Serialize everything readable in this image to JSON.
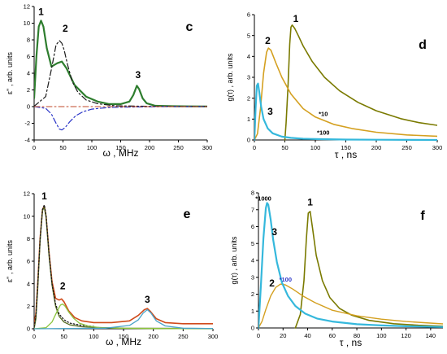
{
  "chart_data": [
    {
      "panel": "c",
      "type": "line",
      "xlabel": "ω , MHz",
      "ylabel": "ε'' , arb. units",
      "xlim": [
        0,
        300
      ],
      "ylim": [
        -4,
        12
      ],
      "xticks": [
        "0",
        "50",
        "100",
        "150",
        "200",
        "250",
        "300"
      ],
      "yticks": [
        "-4",
        "-2",
        "0",
        "2",
        "4",
        "6",
        "8",
        "10",
        "12"
      ],
      "annotations": [
        {
          "text": "1",
          "x": 12,
          "y": 11.0
        },
        {
          "text": "2",
          "x": 54,
          "y": 9.0
        },
        {
          "text": "3",
          "x": 180,
          "y": 3.4
        }
      ],
      "series": [
        {
          "color": "#2e7d2e",
          "style": "solid",
          "width": 2.2,
          "x": [
            0,
            4,
            8,
            12,
            16,
            22,
            30,
            40,
            48,
            56,
            70,
            90,
            110,
            130,
            150,
            165,
            172,
            178,
            182,
            188,
            195,
            210,
            240,
            270,
            300
          ],
          "y": [
            1.0,
            6.0,
            9.6,
            10.3,
            9.6,
            7.0,
            4.8,
            5.2,
            5.4,
            4.6,
            2.6,
            1.2,
            0.6,
            0.3,
            0.3,
            0.6,
            1.4,
            2.5,
            2.1,
            1.0,
            0.4,
            0.1,
            0.05,
            0.03,
            0.02
          ]
        },
        {
          "color": "#1a1a1a",
          "style": "dashdot",
          "width": 1.2,
          "x": [
            0,
            20,
            30,
            38,
            44,
            48,
            52,
            58,
            66,
            76,
            90,
            110,
            140,
            200,
            300
          ],
          "y": [
            0.05,
            1.2,
            4.5,
            7.4,
            7.9,
            7.6,
            6.8,
            5.0,
            3.0,
            1.7,
            0.8,
            0.35,
            0.1,
            0.03,
            0.01
          ]
        },
        {
          "color": "#2a35c8",
          "style": "dashdot",
          "width": 1.2,
          "x": [
            0,
            20,
            30,
            38,
            44,
            48,
            54,
            62,
            72,
            85,
            100,
            130,
            170,
            230,
            300
          ],
          "y": [
            0,
            -0.2,
            -0.9,
            -2.0,
            -2.7,
            -2.8,
            -2.5,
            -1.8,
            -1.1,
            -0.6,
            -0.3,
            -0.1,
            -0.05,
            0,
            0
          ]
        },
        {
          "color": "#c04a2a",
          "style": "dashdot",
          "width": 1.0,
          "x": [
            0,
            100,
            200,
            300
          ],
          "y": [
            0,
            0,
            0,
            0
          ]
        }
      ]
    },
    {
      "panel": "d",
      "type": "line",
      "xlabel": "τ , ns",
      "ylabel": "g(τ) , arb. units",
      "xlim": [
        0,
        300
      ],
      "ylim": [
        0,
        6
      ],
      "xticks": [
        "0",
        "50",
        "100",
        "150",
        "200",
        "250",
        "300"
      ],
      "yticks": [
        "0",
        "1",
        "2",
        "3",
        "4",
        "5",
        "6"
      ],
      "annotations": [
        {
          "text": "1",
          "x": 68,
          "y": 5.65
        },
        {
          "text": "2",
          "x": 22,
          "y": 4.6
        },
        {
          "text": "3",
          "x": 26,
          "y": 1.2
        },
        {
          "text": "*10",
          "x": 113,
          "y": 1.15
        },
        {
          "text": "*100",
          "x": 113,
          "y": 0.25
        }
      ],
      "series": [
        {
          "color": "#7a7a00",
          "style": "solid",
          "width": 1.6,
          "x": [
            50,
            52,
            55,
            58,
            60,
            62,
            66,
            72,
            80,
            95,
            115,
            140,
            170,
            200,
            240,
            270,
            300
          ],
          "y": [
            0,
            0.8,
            2.5,
            4.6,
            5.4,
            5.5,
            5.35,
            5.0,
            4.5,
            3.75,
            3.0,
            2.35,
            1.8,
            1.4,
            1.02,
            0.83,
            0.7
          ]
        },
        {
          "color": "#d4a020",
          "style": "solid",
          "width": 1.6,
          "x": [
            0,
            5,
            10,
            15,
            20,
            23,
            27,
            35,
            45,
            60,
            80,
            100,
            130,
            160,
            200,
            250,
            300
          ],
          "y": [
            0,
            0.3,
            1.5,
            3.2,
            4.2,
            4.4,
            4.3,
            3.7,
            3.0,
            2.2,
            1.5,
            1.1,
            0.75,
            0.55,
            0.37,
            0.24,
            0.18
          ]
        },
        {
          "color": "#35b8dc",
          "style": "solid",
          "width": 2.2,
          "x": [
            0,
            2,
            4,
            6,
            8,
            11,
            15,
            22,
            30,
            45,
            60,
            80,
            110,
            150,
            200,
            300
          ],
          "y": [
            0,
            1.5,
            2.6,
            2.7,
            2.3,
            1.6,
            1.0,
            0.55,
            0.32,
            0.16,
            0.1,
            0.06,
            0.04,
            0.02,
            0.01,
            0.0
          ]
        }
      ]
    },
    {
      "panel": "e",
      "type": "line",
      "xlabel": "ω , MHz",
      "ylabel": "ε'' , arb. units",
      "xlim": [
        0,
        300
      ],
      "ylim": [
        0,
        12
      ],
      "xticks": [
        "0",
        "50",
        "100",
        "150",
        "200",
        "250",
        "300"
      ],
      "yticks": [
        "0",
        "2",
        "4",
        "6",
        "8",
        "10",
        "12"
      ],
      "annotations": [
        {
          "text": "1",
          "x": 17,
          "y": 11.5
        },
        {
          "text": "2",
          "x": 48,
          "y": 3.5
        },
        {
          "text": "3",
          "x": 190,
          "y": 2.3
        }
      ],
      "series": [
        {
          "color": "#d04a1a",
          "style": "solid",
          "width": 1.6,
          "x": [
            0,
            3,
            6,
            10,
            14,
            17,
            20,
            25,
            30,
            36,
            42,
            46,
            50,
            58,
            68,
            80,
            100,
            130,
            160,
            175,
            185,
            190,
            195,
            205,
            220,
            250,
            300
          ],
          "y": [
            0.4,
            1.4,
            4.0,
            8.0,
            10.6,
            10.9,
            10.0,
            6.8,
            4.2,
            2.7,
            2.55,
            2.65,
            2.4,
            1.6,
            1.0,
            0.7,
            0.55,
            0.55,
            0.7,
            1.2,
            1.7,
            1.8,
            1.55,
            0.9,
            0.55,
            0.45,
            0.45
          ]
        },
        {
          "color": "#556b1f",
          "style": "solid",
          "width": 1.3,
          "x": [
            0,
            3,
            6,
            10,
            14,
            17,
            20,
            25,
            30,
            36,
            42,
            50,
            60,
            80,
            100,
            150,
            300
          ],
          "y": [
            0,
            0.9,
            3.5,
            7.8,
            10.5,
            10.8,
            9.9,
            6.5,
            3.9,
            2.0,
            1.1,
            0.6,
            0.35,
            0.18,
            0.12,
            0.05,
            0.02
          ]
        },
        {
          "color": "#1a1a1a",
          "style": "dotted",
          "width": 1.3,
          "x": [
            0,
            3,
            6,
            10,
            14,
            17,
            20,
            25,
            30,
            36,
            42,
            50,
            60,
            80,
            100
          ],
          "y": [
            0.2,
            1.2,
            3.8,
            7.9,
            10.6,
            11.0,
            10.1,
            6.7,
            4.0,
            2.2,
            1.3,
            0.8,
            0.5,
            0.3,
            0.2
          ]
        },
        {
          "color": "#8dc63f",
          "style": "solid",
          "width": 1.3,
          "x": [
            0,
            20,
            30,
            38,
            44,
            48,
            52,
            58,
            66,
            76,
            90,
            110,
            140,
            200,
            300
          ],
          "y": [
            0,
            0.1,
            0.6,
            1.5,
            2.1,
            2.2,
            2.0,
            1.5,
            0.95,
            0.5,
            0.25,
            0.1,
            0.05,
            0.02,
            0
          ]
        },
        {
          "color": "#4aa3c8",
          "style": "solid",
          "width": 1.3,
          "x": [
            0,
            120,
            160,
            175,
            183,
            190,
            196,
            205,
            220,
            250,
            300
          ],
          "y": [
            0,
            0.05,
            0.3,
            0.8,
            1.4,
            1.7,
            1.4,
            0.7,
            0.25,
            0.05,
            0.02
          ]
        }
      ]
    },
    {
      "panel": "f",
      "type": "line",
      "xlabel": "τ , ns",
      "ylabel": "g(τ) , arb. units",
      "xlim": [
        0,
        150
      ],
      "ylim": [
        0,
        8
      ],
      "xticks": [
        "0",
        "20",
        "40",
        "60",
        "80",
        "100",
        "120",
        "140"
      ],
      "yticks": [
        "0",
        "1",
        "2",
        "3",
        "4",
        "5",
        "6",
        "7",
        "8"
      ],
      "annotations": [
        {
          "text": "1",
          "x": 42,
          "y": 7.25
        },
        {
          "text": "2",
          "x": 11,
          "y": 2.45
        },
        {
          "text": "3",
          "x": 13,
          "y": 5.5
        },
        {
          "text": "*1000",
          "x": 4,
          "y": 7.55
        },
        {
          "text": "*100",
          "x": 22,
          "y": 2.75
        }
      ],
      "series": [
        {
          "color": "#7a7a00",
          "style": "solid",
          "width": 1.6,
          "x": [
            30,
            34,
            37,
            39,
            40.5,
            42,
            44,
            47,
            52,
            58,
            66,
            76,
            90,
            110,
            130,
            150
          ],
          "y": [
            0,
            0.8,
            2.8,
            5.3,
            6.8,
            6.9,
            5.9,
            4.3,
            2.8,
            1.8,
            1.15,
            0.75,
            0.45,
            0.25,
            0.16,
            0.1
          ]
        },
        {
          "color": "#d4a020",
          "style": "solid",
          "width": 1.4,
          "x": [
            0,
            3,
            6,
            10,
            14,
            18,
            22,
            28,
            36,
            46,
            60,
            80,
            100,
            120,
            150
          ],
          "y": [
            0,
            0.4,
            1.1,
            1.9,
            2.4,
            2.6,
            2.55,
            2.3,
            1.9,
            1.5,
            1.05,
            0.72,
            0.52,
            0.38,
            0.24
          ]
        },
        {
          "color": "#35b8dc",
          "style": "solid",
          "width": 2.2,
          "x": [
            0,
            2,
            4,
            6,
            7,
            8,
            10,
            12,
            15,
            19,
            24,
            30,
            38,
            48,
            60,
            80,
            100,
            120,
            150
          ],
          "y": [
            0,
            2.5,
            5.3,
            7.1,
            7.4,
            7.3,
            6.4,
            5.2,
            3.9,
            2.7,
            1.9,
            1.3,
            0.85,
            0.55,
            0.38,
            0.22,
            0.15,
            0.1,
            0.06
          ]
        }
      ]
    }
  ],
  "panel_letters": [
    "c",
    "d",
    "e",
    "f"
  ]
}
